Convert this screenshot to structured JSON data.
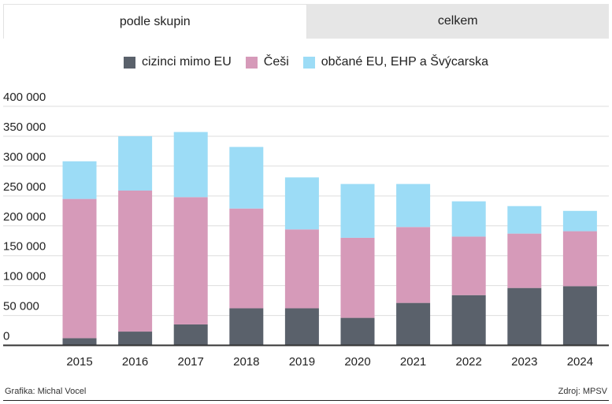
{
  "tabs": [
    {
      "label": "podle skupin",
      "active": true
    },
    {
      "label": "celkem",
      "active": false
    }
  ],
  "legend": [
    {
      "label": "cizinci mimo EU",
      "color": "#5a616b"
    },
    {
      "label": "Češi",
      "color": "#d69ab9"
    },
    {
      "label": "občané EU, EHP a Švýcarska",
      "color": "#9cdcf6"
    }
  ],
  "footer": {
    "credit": "Grafika: Michal Vocel",
    "source": "Zdroj: MPSV"
  },
  "chart_data": {
    "type": "bar",
    "stacked": true,
    "categories": [
      "2015",
      "2016",
      "2017",
      "2018",
      "2019",
      "2020",
      "2021",
      "2022",
      "2023",
      "2024"
    ],
    "series": [
      {
        "name": "cizinci mimo EU",
        "color": "#5a616b",
        "values": [
          12000,
          23000,
          35000,
          62000,
          62000,
          46000,
          71000,
          84000,
          96000,
          99000
        ]
      },
      {
        "name": "Češi",
        "color": "#d69ab9",
        "values": [
          233000,
          236000,
          213000,
          167000,
          132000,
          134000,
          127000,
          98000,
          91000,
          92000
        ]
      },
      {
        "name": "občané EU, EHP a Švýcarska",
        "color": "#9cdcf6",
        "values": [
          63000,
          91000,
          109000,
          103000,
          87000,
          90000,
          72000,
          59000,
          46000,
          34000
        ]
      }
    ],
    "y_ticks": [
      "0",
      "50 000",
      "100 000",
      "150 000",
      "200 000",
      "250 000",
      "300 000",
      "350 000",
      "400 000"
    ],
    "ylim": [
      0,
      400000
    ],
    "grid": true,
    "legend_position": "top-center"
  }
}
